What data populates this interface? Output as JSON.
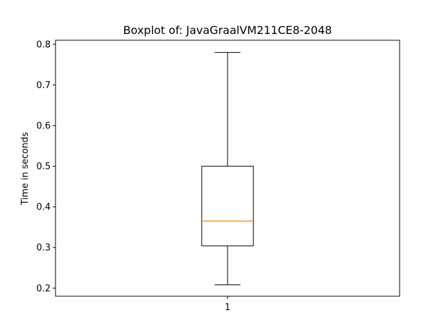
{
  "chart_data": {
    "type": "box",
    "title": "Boxplot of: JavaGraalVM211CE8-2048",
    "xlabel": "",
    "ylabel": "Time in seconds",
    "categories": [
      "1"
    ],
    "ylim": [
      0.18,
      0.81
    ],
    "yticks": [
      "0.2",
      "0.3",
      "0.4",
      "0.5",
      "0.6",
      "0.7",
      "0.8"
    ],
    "grid": false,
    "boxes": [
      {
        "label": "1",
        "whisker_low": 0.208,
        "q1": 0.304,
        "median": 0.365,
        "q3": 0.5,
        "whisker_high": 0.78
      }
    ],
    "colors": {
      "box": "#000000",
      "median": "#ff7f0e"
    }
  }
}
